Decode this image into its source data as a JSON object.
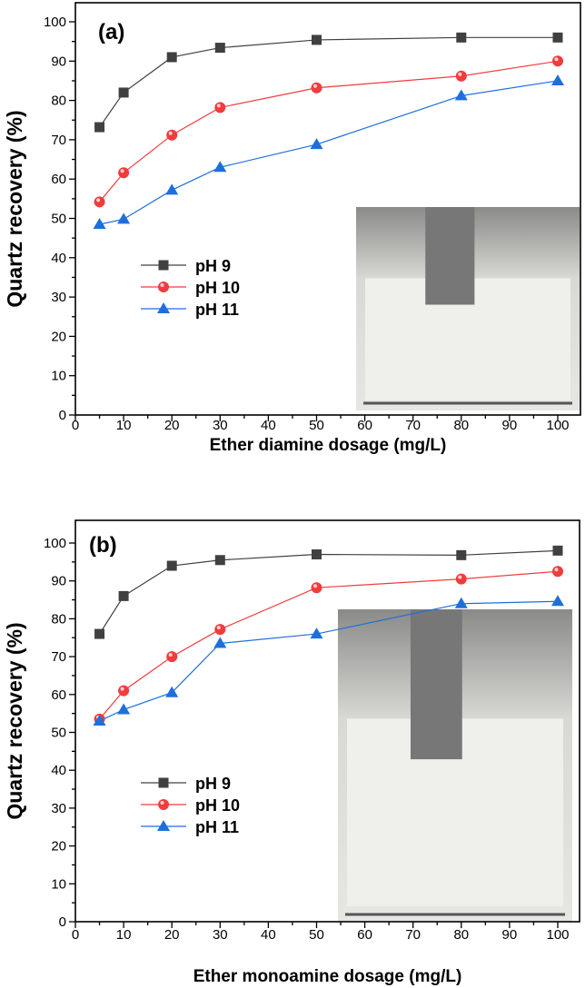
{
  "chart_data": [
    {
      "type": "line",
      "panel_label": "(a)",
      "xlabel": "Ether diamine dosage (mg/L)",
      "ylabel": "Quartz recovery (%)",
      "xlim": [
        0,
        104
      ],
      "ylim": [
        0,
        104
      ],
      "xticks": [
        0,
        10,
        20,
        30,
        40,
        50,
        60,
        70,
        80,
        90,
        100
      ],
      "yticks": [
        0,
        10,
        20,
        30,
        40,
        50,
        60,
        70,
        80,
        90,
        100
      ],
      "legend_position": "center-left",
      "x": [
        5,
        10,
        20,
        30,
        50,
        80,
        100
      ],
      "series": [
        {
          "name": "pH 9",
          "marker": "square",
          "color": "#404040",
          "values": [
            73.2,
            82,
            91,
            93.4,
            95.4,
            96,
            96
          ]
        },
        {
          "name": "pH 10",
          "marker": "circle",
          "color": "#f03c3c",
          "values": [
            54.2,
            61.6,
            71.2,
            78.2,
            83.2,
            86.2,
            90
          ]
        },
        {
          "name": "pH 11",
          "marker": "triangle",
          "color": "#1e6fdc",
          "values": [
            48.5,
            49.8,
            57.2,
            63,
            68.8,
            81.2,
            85
          ]
        }
      ]
    },
    {
      "type": "line",
      "panel_label": "(b)",
      "xlabel": "Ether monoamine dosage (mg/L)",
      "ylabel": "Quartz recovery (%)",
      "xlim": [
        0,
        104
      ],
      "ylim": [
        0,
        106
      ],
      "xticks": [
        0,
        10,
        20,
        30,
        40,
        50,
        60,
        70,
        80,
        90,
        100
      ],
      "yticks": [
        0,
        10,
        20,
        30,
        40,
        50,
        60,
        70,
        80,
        90,
        100
      ],
      "legend_position": "center-left",
      "x": [
        5,
        10,
        20,
        30,
        50,
        80,
        100
      ],
      "series": [
        {
          "name": "pH 9",
          "marker": "square",
          "color": "#404040",
          "values": [
            76,
            86,
            94,
            95.5,
            97,
            96.8,
            98
          ]
        },
        {
          "name": "pH 10",
          "marker": "circle",
          "color": "#f03c3c",
          "values": [
            53.5,
            61,
            70,
            77.2,
            88.2,
            90.5,
            92.5
          ]
        },
        {
          "name": "pH 11",
          "marker": "triangle",
          "color": "#1e6fdc",
          "values": [
            53,
            56,
            60.5,
            73.5,
            76,
            84,
            84.6
          ]
        }
      ]
    }
  ]
}
